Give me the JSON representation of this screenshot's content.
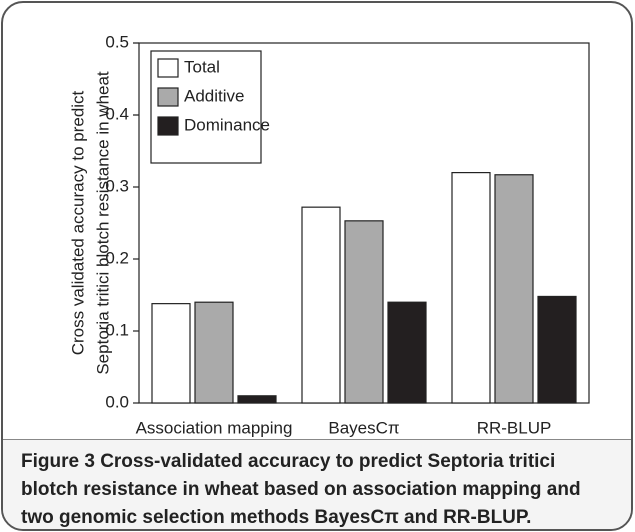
{
  "chart_data": {
    "type": "bar",
    "ylabel": [
      "Cross validated accuracy to predict",
      "Septoria tritici blotch resistance in wheat"
    ],
    "categories": [
      "Association mapping",
      "BayesCπ",
      "RR-BLUP"
    ],
    "series": [
      {
        "name": "Total",
        "color": "#ffffff",
        "values": [
          0.138,
          0.272,
          0.32
        ]
      },
      {
        "name": "Additive",
        "color": "#aaaaaa",
        "values": [
          0.14,
          0.253,
          0.317
        ]
      },
      {
        "name": "Dominance",
        "color": "#231f20",
        "values": [
          0.01,
          0.14,
          0.148
        ]
      }
    ],
    "ylim": [
      0,
      0.5
    ],
    "yticks": [
      {
        "value": 0,
        "label": "0.0"
      },
      0.1,
      0.2,
      0.3,
      0.4,
      0.5
    ],
    "legend": "upper left"
  },
  "figure_label": "Figure 3",
  "caption": "Cross-validated accuracy to predict Septoria tritici blotch resistance in wheat based on association mapping and two genomic selection methods BayesCπ and RR-BLUP."
}
